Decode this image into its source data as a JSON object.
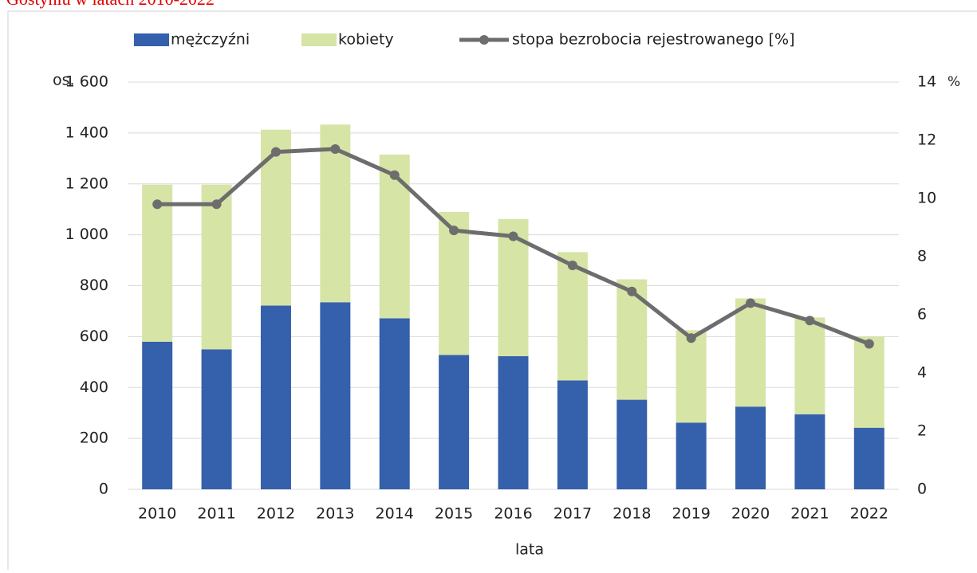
{
  "chart_data": {
    "type": "bar",
    "title": "Gostyniu w latach 2010-2022",
    "x_label": "lata",
    "y_label": "os.",
    "y2_label": "%",
    "categories": [
      "2010",
      "2011",
      "2012",
      "2013",
      "2014",
      "2015",
      "2016",
      "2017",
      "2018",
      "2019",
      "2020",
      "2021",
      "2022"
    ],
    "stacked": true,
    "series": [
      {
        "name": "mężczyźni",
        "color": "#3560ab",
        "values": [
          580,
          550,
          722,
          735,
          672,
          528,
          523,
          428,
          352,
          262,
          325,
          295,
          242
        ]
      },
      {
        "name": "kobiety",
        "color": "#d6e4a6",
        "values": [
          617,
          647,
          691,
          698,
          643,
          562,
          539,
          504,
          473,
          363,
          425,
          380,
          358
        ]
      },
      {
        "name": "stopa bezrobocia rejestrowanego [%]",
        "type": "line",
        "axis": "y2",
        "color": "#6d6d6d",
        "values": [
          9.8,
          9.8,
          11.6,
          11.7,
          10.8,
          8.9,
          8.7,
          7.7,
          6.8,
          5.2,
          6.4,
          5.8,
          5.0
        ]
      }
    ],
    "ylim": [
      0,
      1600
    ],
    "yticks": [
      0,
      200,
      400,
      600,
      800,
      {
        "value": 1000,
        "label": "1 000"
      },
      {
        "value": 1200,
        "label": "1 200"
      },
      {
        "value": 1400,
        "label": "1 400"
      },
      {
        "value": 1600,
        "label": "1 600"
      }
    ],
    "y2lim": [
      0,
      14
    ],
    "y2ticks": [
      0,
      2,
      4,
      6,
      8,
      10,
      12,
      14
    ],
    "grid": true,
    "legend": "top"
  }
}
